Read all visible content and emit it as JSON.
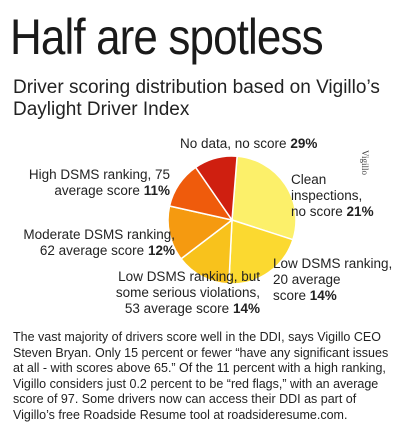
{
  "headline": "Half are spotless",
  "subtitle": "Driver scoring distribution based on Vigillo’s Daylight Driver Index",
  "credit": "Vigillo",
  "chart_data": {
    "type": "pie",
    "title": "Driver scoring distribution based on Vigillo’s Daylight Driver Index",
    "slices": [
      {
        "label": "No data, no score",
        "value": 29,
        "display": "29%",
        "color": "#fcf06a"
      },
      {
        "label": "Clean inspections, no score",
        "value": 21,
        "display": "21%",
        "color": "#fbd930"
      },
      {
        "label": "Low DSMS ranking, 20 average score",
        "value": 14,
        "display": "14%",
        "color": "#f8c21c"
      },
      {
        "label": "Low DSMS ranking, but some serious violations, 53 average score",
        "value": 14,
        "display": "14%",
        "color": "#f59a10"
      },
      {
        "label": "Moderate DSMS ranking, 62 average score",
        "value": 12,
        "display": "12%",
        "color": "#ef5b0c"
      },
      {
        "label": "High DSMS ranking, 75 average score",
        "value": 11,
        "display": "11%",
        "color": "#cf1f10"
      }
    ]
  },
  "labels": {
    "no_data": {
      "text": "No data, no score",
      "pct": "29%"
    },
    "clean": {
      "line1": "Clean",
      "line2": "inspections,",
      "line3": "no score",
      "pct": "21%"
    },
    "low": {
      "line1": "Low DSMS ranking,",
      "line2": "20 average",
      "line3": "score",
      "pct": "14%"
    },
    "low_serious": {
      "line1": "Low DSMS ranking, but",
      "line2": "some serious violations,",
      "line3": "53 average score",
      "pct": "14%"
    },
    "moderate": {
      "line1": "Moderate DSMS ranking,",
      "line2": "62 average score",
      "pct": "12%"
    },
    "high": {
      "line1": "High DSMS ranking, 75",
      "line2": "average score",
      "pct": "11%"
    }
  },
  "body": "The vast majority of drivers score well in the DDI, says Vigillo CEO Steven Bryan. Only 15 percent or fewer “have any significant issues at all - with scores above 65.” Of the 11 percent with a high ranking, Vigillo considers just 0.2 percent to be “red flags,” with an average score of 97. Some drivers now can access their DDI as part of Vigillo’s free Roadside Resume tool at roadsideresume.com."
}
